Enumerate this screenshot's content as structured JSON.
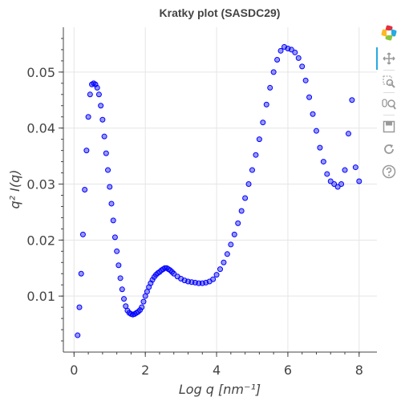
{
  "chart_data": {
    "type": "scatter",
    "title": "Kratky plot (SASDC29)",
    "xlabel": "Log q [nm⁻¹]",
    "ylabel": "q² I(q)",
    "xlim": [
      -0.3,
      8.5
    ],
    "ylim": [
      0.0,
      0.058
    ],
    "xticks": [
      0,
      2,
      4,
      6,
      8
    ],
    "yticks": [
      0.01,
      0.02,
      0.03,
      0.04,
      0.05
    ],
    "grid": true,
    "legend": "none",
    "marker_color": "#0000ff",
    "series": [
      {
        "x": [
          0.1,
          0.15,
          0.2,
          0.25,
          0.3,
          0.35,
          0.4,
          0.45,
          0.5,
          0.55,
          0.6,
          0.65,
          0.7,
          0.75,
          0.8,
          0.85,
          0.9,
          0.95,
          1.0,
          1.05,
          1.1,
          1.15,
          1.2,
          1.25,
          1.3,
          1.35,
          1.4,
          1.45,
          1.5,
          1.55,
          1.6,
          1.65,
          1.7,
          1.75,
          1.8,
          1.85,
          1.9,
          1.95,
          2.0,
          2.05,
          2.1,
          2.15,
          2.2,
          2.25,
          2.3,
          2.35,
          2.4,
          2.45,
          2.5,
          2.55,
          2.6,
          2.65,
          2.7,
          2.75,
          2.8,
          2.9,
          3.0,
          3.1,
          3.2,
          3.3,
          3.4,
          3.5,
          3.6,
          3.7,
          3.8,
          3.9,
          4.0,
          4.1,
          4.2,
          4.3,
          4.4,
          4.5,
          4.6,
          4.7,
          4.8,
          4.9,
          5.0,
          5.1,
          5.2,
          5.3,
          5.4,
          5.5,
          5.6,
          5.7,
          5.8,
          5.9,
          6.0,
          6.1,
          6.2,
          6.3,
          6.4,
          6.5,
          6.6,
          6.7,
          6.8,
          6.9,
          7.0,
          7.1,
          7.2,
          7.3,
          7.4,
          7.5,
          7.6,
          7.7,
          7.8,
          7.9,
          8.0
        ],
        "y": [
          0.003,
          0.008,
          0.014,
          0.021,
          0.029,
          0.036,
          0.042,
          0.046,
          0.0478,
          0.048,
          0.0478,
          0.0472,
          0.046,
          0.044,
          0.0415,
          0.0385,
          0.0355,
          0.0325,
          0.0295,
          0.0265,
          0.0235,
          0.0205,
          0.018,
          0.0155,
          0.0132,
          0.0112,
          0.0095,
          0.0082,
          0.0074,
          0.007,
          0.0068,
          0.0067,
          0.0068,
          0.007,
          0.0072,
          0.0075,
          0.008,
          0.009,
          0.01,
          0.0108,
          0.0116,
          0.0123,
          0.0129,
          0.0134,
          0.0138,
          0.0141,
          0.0143,
          0.0146,
          0.0148,
          0.015,
          0.015,
          0.0148,
          0.0146,
          0.0143,
          0.014,
          0.0135,
          0.0131,
          0.0128,
          0.0126,
          0.0125,
          0.0124,
          0.0123,
          0.0123,
          0.0124,
          0.0126,
          0.013,
          0.0138,
          0.0148,
          0.016,
          0.0175,
          0.0192,
          0.021,
          0.023,
          0.0252,
          0.0275,
          0.03,
          0.0325,
          0.0352,
          0.038,
          0.041,
          0.0442,
          0.0472,
          0.05,
          0.0522,
          0.0538,
          0.0545,
          0.0542,
          0.054,
          0.0535,
          0.0525,
          0.051,
          0.0485,
          0.0455,
          0.0425,
          0.0395,
          0.0365,
          0.034,
          0.0318,
          0.0305,
          0.03,
          0.0295,
          0.03,
          0.0325,
          0.039,
          0.045,
          0.033,
          0.0305
        ]
      }
    ]
  },
  "toolbar": {
    "logo_icon": "bokeh-logo-icon",
    "tools": [
      "pan-icon",
      "box-zoom-icon",
      "wheel-zoom-icon",
      "save-icon",
      "reset-icon",
      "help-icon"
    ]
  }
}
